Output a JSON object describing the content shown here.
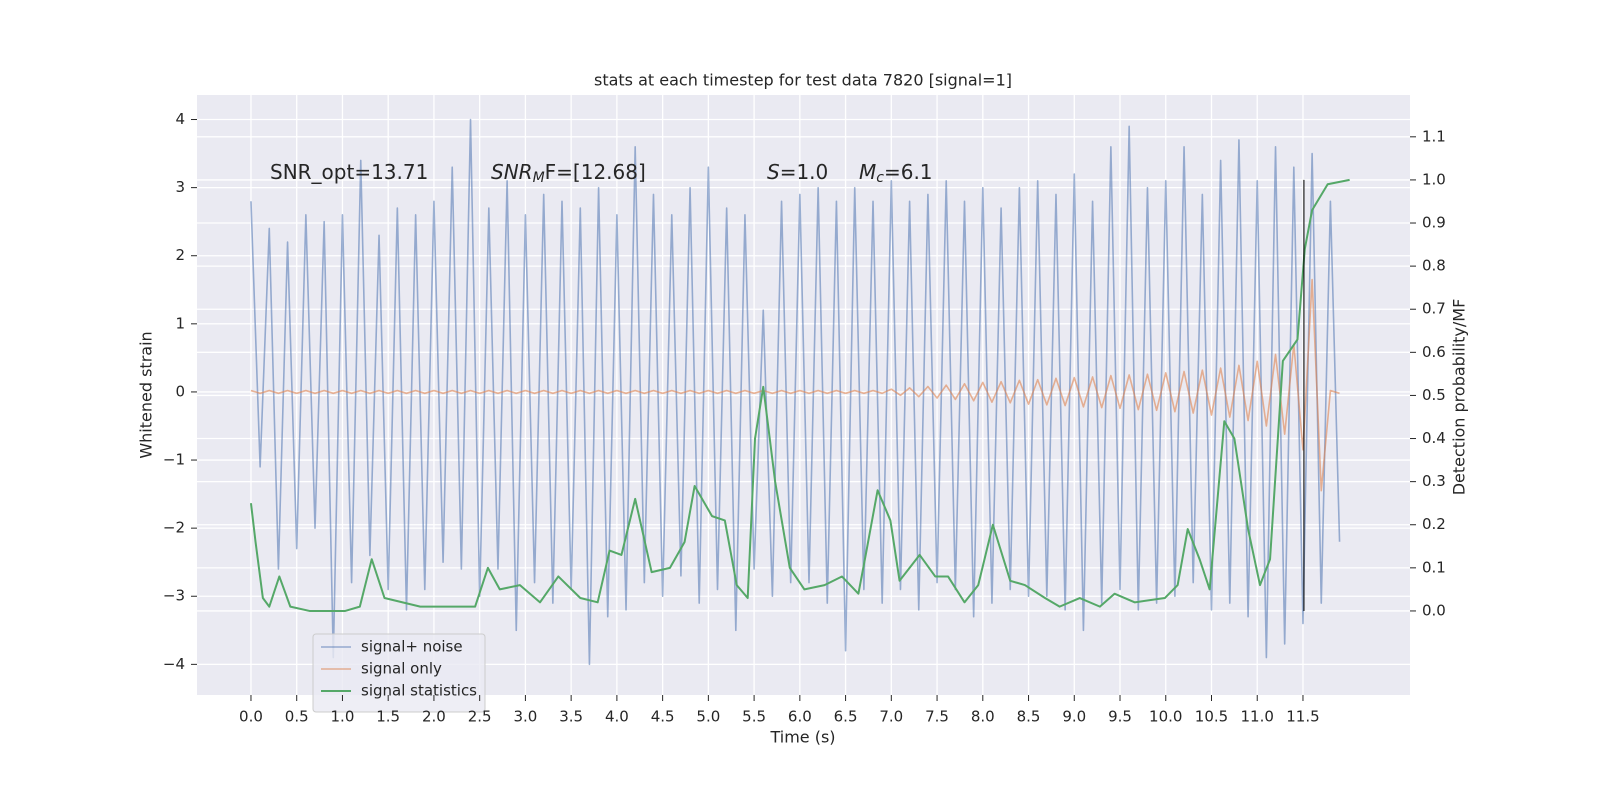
{
  "chart_data": {
    "type": "line",
    "title": "stats at each timestep for test data 7820 [signal=1]",
    "xlabel": "Time (s)",
    "ylabel": "Whitened strain",
    "y2label": "Detection probability/MF",
    "annotations": [
      {
        "parts": [
          "SNR_opt=13.71"
        ]
      },
      {
        "parts": [
          "SNR",
          "M",
          "F=[12.68]"
        ]
      },
      {
        "parts": [
          "S",
          "=1.0"
        ]
      },
      {
        "parts": [
          "M",
          "c",
          "=6.1"
        ]
      }
    ],
    "xlim": [
      -0.59,
      12.67
    ],
    "ylim": [
      -4.45,
      4.36
    ],
    "y2lim": [
      -0.195,
      1.197
    ],
    "xticks": [
      {
        "value": 0,
        "label": "0.0"
      },
      0.5,
      {
        "value": 1,
        "label": "1.0"
      },
      1.5,
      {
        "value": 2,
        "label": "2.0"
      },
      2.5,
      {
        "value": 3,
        "label": "3.0"
      },
      3.5,
      {
        "value": 4,
        "label": "4.0"
      },
      4.5,
      {
        "value": 5,
        "label": "5.0"
      },
      5.5,
      {
        "value": 6,
        "label": "6.0"
      },
      6.5,
      {
        "value": 7,
        "label": "7.0"
      },
      7.5,
      {
        "value": 8,
        "label": "8.0"
      },
      8.5,
      {
        "value": 9,
        "label": "9.0"
      },
      9.5,
      {
        "value": 10,
        "label": "10.0"
      },
      10.5,
      {
        "value": 11,
        "label": "11.0"
      },
      11.5
    ],
    "yticks": [
      {
        "value": -4,
        "label": "−4"
      },
      {
        "value": -3,
        "label": "−3"
      },
      {
        "value": -2,
        "label": "−2"
      },
      {
        "value": -1,
        "label": "−1"
      },
      0,
      1,
      2,
      3,
      4
    ],
    "y2ticks": [
      {
        "value": 0,
        "label": "0.0"
      },
      0.1,
      0.2,
      0.3,
      0.4,
      0.5,
      0.6,
      0.7,
      0.8,
      0.9,
      {
        "value": 1,
        "label": "1.0"
      },
      1.1
    ],
    "grid": true,
    "legend": "lower left",
    "x": [
      0.0,
      0.1,
      0.2,
      0.3,
      0.4,
      0.5,
      0.6,
      0.7,
      0.8,
      0.9,
      1.0,
      1.1,
      1.2,
      1.3,
      1.4,
      1.5,
      1.6,
      1.7,
      1.8,
      1.9,
      2.0,
      2.1,
      2.2,
      2.3,
      2.4,
      2.5,
      2.6,
      2.7,
      2.8,
      2.9,
      3.0,
      3.1,
      3.2,
      3.3,
      3.4,
      3.5,
      3.6,
      3.7,
      3.8,
      3.9,
      4.0,
      4.1,
      4.2,
      4.3,
      4.4,
      4.5,
      4.6,
      4.7,
      4.8,
      4.9,
      5.0,
      5.1,
      5.2,
      5.3,
      5.4,
      5.5,
      5.6,
      5.7,
      5.8,
      5.9,
      6.0,
      6.1,
      6.2,
      6.3,
      6.4,
      6.5,
      6.6,
      6.7,
      6.8,
      6.9,
      7.0,
      7.1,
      7.2,
      7.3,
      7.4,
      7.5,
      7.6,
      7.7,
      7.8,
      7.9,
      8.0,
      8.1,
      8.2,
      8.3,
      8.4,
      8.5,
      8.6,
      8.7,
      8.8,
      8.9,
      9.0,
      9.1,
      9.2,
      9.3,
      9.4,
      9.5,
      9.6,
      9.7,
      9.8,
      9.9,
      10.0,
      10.1,
      10.2,
      10.3,
      10.4,
      10.5,
      10.6,
      10.7,
      10.8,
      10.9,
      11.0,
      11.1,
      11.2,
      11.3,
      11.4,
      11.5,
      11.6,
      11.7,
      11.8,
      11.9
    ],
    "series": [
      {
        "name": "signal+ noise",
        "color": "#4c72b0",
        "values": [
          2.8,
          -1.1,
          2.4,
          -2.6,
          2.2,
          -2.3,
          2.6,
          -2.0,
          2.5,
          -3.9,
          2.6,
          -2.8,
          3.4,
          -2.4,
          2.3,
          -2.9,
          2.7,
          -3.2,
          2.6,
          -2.9,
          2.8,
          -2.5,
          3.3,
          -2.6,
          4.0,
          -3.0,
          2.7,
          -2.6,
          3.1,
          -3.5,
          2.6,
          -2.8,
          2.9,
          -3.1,
          2.8,
          -2.9,
          2.7,
          -4.0,
          3.0,
          -3.3,
          2.6,
          -3.2,
          3.6,
          -2.8,
          2.9,
          -3.0,
          2.6,
          -2.7,
          3.0,
          -3.1,
          3.3,
          -2.9,
          2.7,
          -3.5,
          2.6,
          -2.6,
          1.2,
          -3.0,
          2.8,
          -2.8,
          2.9,
          -2.8,
          3.0,
          -3.1,
          2.8,
          -3.8,
          3.0,
          -2.9,
          2.8,
          -3.1,
          3.1,
          -2.9,
          2.8,
          -3.2,
          2.9,
          -2.8,
          3.1,
          -2.9,
          2.8,
          -3.3,
          3.0,
          -3.1,
          2.7,
          -2.9,
          3.0,
          -3.0,
          3.1,
          -3.0,
          2.9,
          -3.2,
          3.2,
          -3.5,
          2.8,
          -3.1,
          3.6,
          -2.9,
          3.9,
          -3.2,
          3.0,
          -3.1,
          3.1,
          -3.0,
          3.6,
          -2.8,
          2.9,
          -3.2,
          3.4,
          -3.1,
          3.7,
          -3.3,
          3.1,
          -3.9,
          3.6,
          -3.7,
          3.3,
          -3.4,
          3.5,
          -3.1,
          2.8,
          -2.2
        ]
      },
      {
        "name": "signal only",
        "color": "#dd8452",
        "values": [
          0.02,
          -0.02,
          0.02,
          -0.02,
          0.02,
          -0.02,
          0.02,
          -0.02,
          0.02,
          -0.02,
          0.02,
          -0.02,
          0.02,
          -0.02,
          0.02,
          -0.02,
          0.02,
          -0.02,
          0.02,
          -0.02,
          0.02,
          -0.02,
          0.02,
          -0.02,
          0.02,
          -0.02,
          0.02,
          -0.02,
          0.02,
          -0.02,
          0.02,
          -0.02,
          0.02,
          -0.02,
          0.02,
          -0.02,
          0.02,
          -0.02,
          0.02,
          -0.02,
          0.02,
          -0.02,
          0.02,
          -0.02,
          0.02,
          -0.02,
          0.02,
          -0.02,
          0.02,
          -0.02,
          0.02,
          -0.02,
          0.02,
          -0.02,
          0.02,
          -0.02,
          0.02,
          -0.02,
          0.02,
          -0.02,
          0.02,
          -0.02,
          0.02,
          -0.02,
          0.02,
          -0.02,
          0.02,
          -0.02,
          0.02,
          -0.02,
          0.04,
          -0.05,
          0.06,
          -0.07,
          0.08,
          -0.09,
          0.1,
          -0.11,
          0.12,
          -0.13,
          0.14,
          -0.15,
          0.15,
          -0.16,
          0.17,
          -0.18,
          0.18,
          -0.19,
          0.2,
          -0.2,
          0.21,
          -0.22,
          0.22,
          -0.23,
          0.24,
          -0.24,
          0.25,
          -0.26,
          0.26,
          -0.27,
          0.28,
          -0.29,
          0.3,
          -0.31,
          0.32,
          -0.34,
          0.35,
          -0.37,
          0.39,
          -0.42,
          0.45,
          -0.5,
          0.55,
          -0.62,
          0.7,
          -0.85,
          1.65,
          -1.45,
          0.02,
          -0.02
        ]
      },
      {
        "name": "signal statistics",
        "color": "#55a868",
        "axis": "y2",
        "x": [
          0.0,
          0.05,
          0.13,
          0.2,
          0.31,
          0.43,
          0.64,
          1.03,
          1.19,
          1.32,
          1.46,
          1.85,
          2.28,
          2.45,
          2.59,
          2.72,
          2.94,
          3.16,
          3.36,
          3.6,
          3.79,
          3.92,
          4.05,
          4.2,
          4.38,
          4.58,
          4.74,
          4.85,
          5.04,
          5.18,
          5.31,
          5.43,
          5.51,
          5.6,
          5.73,
          5.89,
          6.05,
          6.27,
          6.46,
          6.64,
          6.72,
          6.85,
          6.99,
          7.09,
          7.31,
          7.48,
          7.62,
          7.8,
          7.95,
          8.11,
          8.3,
          8.46,
          8.68,
          8.84,
          9.06,
          9.28,
          9.44,
          9.66,
          9.99,
          10.13,
          10.24,
          10.37,
          10.48,
          10.64,
          10.75,
          10.9,
          11.03,
          11.14,
          11.28,
          11.44,
          11.52,
          11.6,
          11.77,
          12.01
        ],
        "values": [
          0.25,
          0.16,
          0.03,
          0.01,
          0.08,
          0.01,
          0.0,
          0.0,
          0.01,
          0.12,
          0.03,
          0.01,
          0.01,
          0.01,
          0.1,
          0.05,
          0.06,
          0.02,
          0.08,
          0.03,
          0.02,
          0.14,
          0.13,
          0.26,
          0.09,
          0.1,
          0.16,
          0.29,
          0.22,
          0.21,
          0.06,
          0.03,
          0.4,
          0.52,
          0.3,
          0.1,
          0.05,
          0.06,
          0.08,
          0.04,
          0.13,
          0.28,
          0.21,
          0.07,
          0.13,
          0.08,
          0.08,
          0.02,
          0.06,
          0.2,
          0.07,
          0.06,
          0.03,
          0.01,
          0.03,
          0.01,
          0.04,
          0.02,
          0.03,
          0.06,
          0.19,
          0.12,
          0.05,
          0.44,
          0.4,
          0.19,
          0.06,
          0.12,
          0.58,
          0.63,
          0.84,
          0.93,
          0.99,
          1.0
        ]
      }
    ],
    "vline": {
      "x": 11.51,
      "ymin": 0,
      "ymax": 1,
      "axis": "y2",
      "color": "#000000"
    }
  }
}
